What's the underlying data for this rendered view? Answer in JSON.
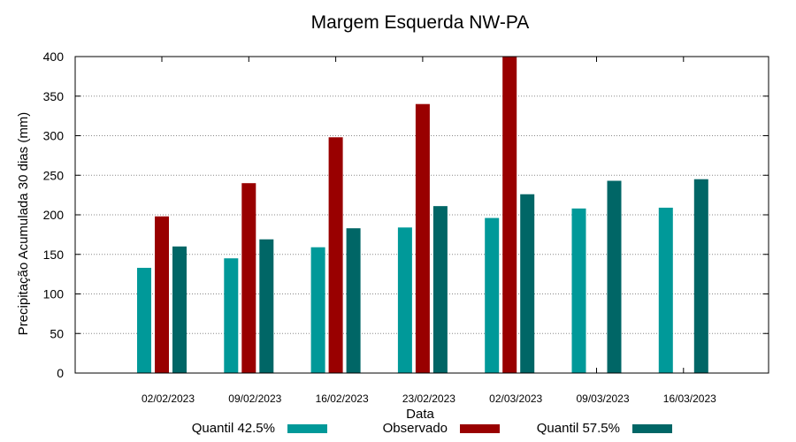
{
  "chart_data": {
    "type": "bar",
    "title": "Margem Esquerda NW-PA",
    "xlabel": "Data",
    "ylabel": "Precipitação Acumulada 30 dias (mm)",
    "ylim": [
      0,
      400
    ],
    "yticks": [
      0,
      50,
      100,
      150,
      200,
      250,
      300,
      350,
      400
    ],
    "grid": true,
    "legend_position": "bottom",
    "categories": [
      "02/02/2023",
      "09/02/2023",
      "16/02/2023",
      "23/02/2023",
      "02/03/2023",
      "09/03/2023",
      "16/03/2023"
    ],
    "series": [
      {
        "name": "Quantil 42.5%",
        "color": "#009999",
        "values": [
          133,
          145,
          159,
          184,
          196,
          208,
          209
        ]
      },
      {
        "name": "Observado",
        "color": "#990000",
        "values": [
          198,
          240,
          298,
          340,
          400,
          null,
          null
        ]
      },
      {
        "name": "Quantil 57.5%",
        "color": "#006666",
        "values": [
          160,
          169,
          183,
          211,
          226,
          243,
          245
        ]
      }
    ]
  }
}
